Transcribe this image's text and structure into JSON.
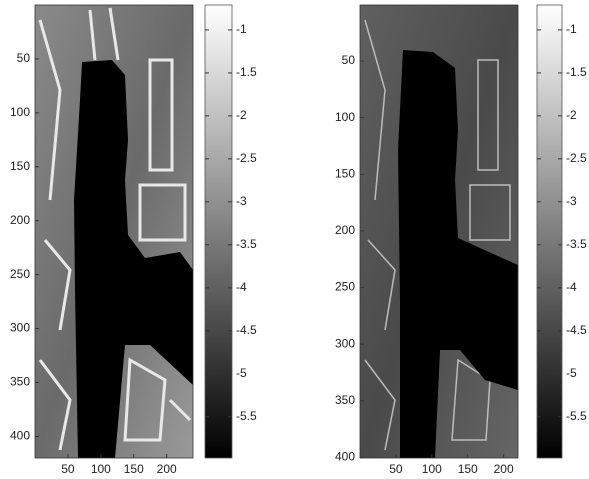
{
  "chart_data": [
    {
      "type": "image",
      "colormap": "gray",
      "xlim": [
        0,
        240
      ],
      "xticks": [
        50,
        100,
        150,
        200
      ],
      "ylim": [
        0,
        420
      ],
      "yreverse": true,
      "yticks": [
        50,
        100,
        150,
        200,
        250,
        300,
        350,
        400
      ],
      "clim": [
        -5.98,
        -0.71
      ],
      "cticks": [
        -1,
        -1.5,
        -2,
        -2.5,
        -3,
        -3.5,
        -4,
        -4.5,
        -5,
        -5.5
      ]
    },
    {
      "type": "image",
      "colormap": "gray",
      "xlim": [
        0,
        220
      ],
      "xticks": [
        50,
        100,
        150,
        200
      ],
      "ylim": [
        0.5,
        400.5
      ],
      "yreverse": true,
      "yticks": [
        50,
        100,
        150,
        200,
        250,
        300,
        350,
        400
      ],
      "clim": [
        -5.98,
        -0.71
      ],
      "cticks": [
        -1,
        -1.5,
        -2,
        -2.5,
        -3,
        -3.5,
        -4,
        -4.5,
        -5,
        -5.5
      ]
    }
  ]
}
